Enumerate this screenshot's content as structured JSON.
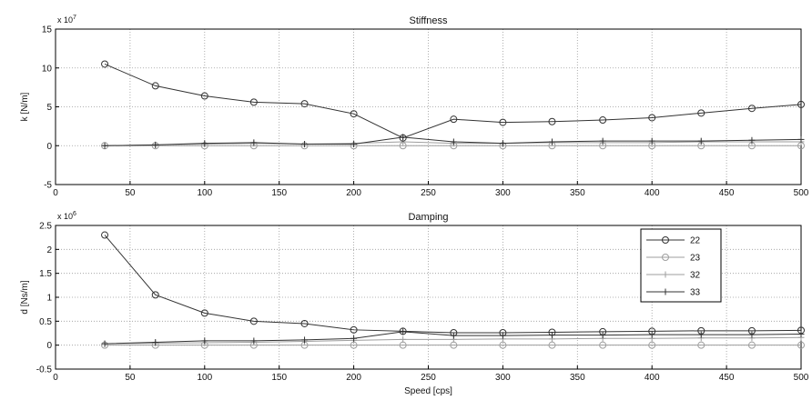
{
  "colors": {
    "background": "#ffffff",
    "grid": "#9a9a9a",
    "axes": "#000000"
  },
  "chart_data": [
    {
      "type": "line",
      "title": "Stiffness",
      "xlabel": "",
      "ylabel": "k [N/m]",
      "exponent": "x 10",
      "exponent_power": "7",
      "xlim": [
        0,
        500
      ],
      "ylim": [
        -5,
        15
      ],
      "xticks": [
        "0",
        "50",
        "100",
        "150",
        "200",
        "250",
        "300",
        "350",
        "400",
        "450",
        "500"
      ],
      "yticks": [
        "-5",
        "0",
        "5",
        "10",
        "15"
      ],
      "grid": true,
      "x": [
        33,
        67,
        100,
        133,
        167,
        200,
        233,
        267,
        300,
        333,
        367,
        400,
        433,
        467,
        500
      ],
      "series": [
        {
          "name": "22",
          "color": "#333333",
          "marker": "circle",
          "values": [
            10.5,
            7.7,
            6.4,
            5.6,
            5.4,
            4.1,
            1.0,
            3.4,
            3.0,
            3.1,
            3.3,
            3.6,
            4.2,
            4.8,
            5.3
          ]
        },
        {
          "name": "23",
          "color": "#9e9e9e",
          "marker": "circle",
          "values": [
            0,
            0,
            0,
            0,
            0,
            0,
            0,
            0,
            0,
            0,
            0,
            0,
            0,
            0,
            0
          ]
        },
        {
          "name": "32",
          "color": "#9e9e9e",
          "marker": "plus",
          "values": [
            0,
            0.1,
            0.2,
            0.3,
            0.2,
            0.3,
            0.5,
            0.3,
            0.3,
            0.4,
            0.4,
            0.4,
            0.5,
            0.5,
            0.5
          ]
        },
        {
          "name": "33",
          "color": "#333333",
          "marker": "plus",
          "values": [
            0,
            0.1,
            0.3,
            0.4,
            0.2,
            0.2,
            1.1,
            0.5,
            0.3,
            0.5,
            0.6,
            0.6,
            0.6,
            0.7,
            0.8
          ]
        }
      ]
    },
    {
      "type": "line",
      "title": "Damping",
      "xlabel": "Speed [cps]",
      "ylabel": "d [Ns/m]",
      "exponent": "x 10",
      "exponent_power": "6",
      "xlim": [
        0,
        500
      ],
      "ylim": [
        -0.5,
        2.5
      ],
      "xticks": [
        "0",
        "50",
        "100",
        "150",
        "200",
        "250",
        "300",
        "350",
        "400",
        "450",
        "500"
      ],
      "yticks": [
        "-0.5",
        "0",
        "0.5",
        "1",
        "1.5",
        "2",
        "2.5"
      ],
      "grid": true,
      "legend_position": "top-right",
      "x": [
        33,
        67,
        100,
        133,
        167,
        200,
        233,
        267,
        300,
        333,
        367,
        400,
        433,
        467,
        500
      ],
      "series": [
        {
          "name": "22",
          "color": "#333333",
          "marker": "circle",
          "values": [
            2.3,
            1.05,
            0.67,
            0.5,
            0.45,
            0.32,
            0.29,
            0.26,
            0.26,
            0.27,
            0.28,
            0.29,
            0.3,
            0.3,
            0.31
          ]
        },
        {
          "name": "23",
          "color": "#9e9e9e",
          "marker": "circle",
          "values": [
            0,
            0,
            0,
            0,
            0,
            0,
            0,
            0,
            0,
            0,
            0,
            0,
            0,
            0,
            0
          ]
        },
        {
          "name": "32",
          "color": "#9e9e9e",
          "marker": "plus",
          "values": [
            0.03,
            0.04,
            0.05,
            0.06,
            0.08,
            0.1,
            0.12,
            0.12,
            0.13,
            0.13,
            0.14,
            0.14,
            0.15,
            0.15,
            0.16
          ]
        },
        {
          "name": "33",
          "color": "#333333",
          "marker": "plus",
          "values": [
            0.03,
            0.06,
            0.09,
            0.09,
            0.11,
            0.14,
            0.28,
            0.2,
            0.2,
            0.21,
            0.21,
            0.22,
            0.22,
            0.22,
            0.23
          ]
        }
      ]
    }
  ]
}
